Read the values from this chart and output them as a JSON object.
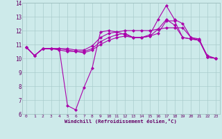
{
  "xlabel": "Windchill (Refroidissement éolien,°C)",
  "background_color": "#cdeaea",
  "grid_color": "#aacccc",
  "line_color": "#aa00aa",
  "x": [
    0,
    1,
    2,
    3,
    4,
    5,
    6,
    7,
    8,
    9,
    10,
    11,
    12,
    13,
    14,
    15,
    16,
    17,
    18,
    19,
    20,
    21,
    22,
    23
  ],
  "line1": [
    10.8,
    10.2,
    10.7,
    10.7,
    10.7,
    6.6,
    6.3,
    7.9,
    9.3,
    11.9,
    12.0,
    11.9,
    11.7,
    11.5,
    11.5,
    11.7,
    12.8,
    13.8,
    12.8,
    12.5,
    11.5,
    11.3,
    10.1,
    10.0
  ],
  "line2": [
    10.8,
    10.2,
    10.7,
    10.7,
    10.7,
    10.7,
    10.6,
    10.6,
    10.9,
    11.5,
    11.8,
    11.9,
    12.0,
    12.0,
    12.0,
    12.0,
    12.1,
    12.2,
    12.2,
    12.2,
    11.5,
    11.4,
    10.1,
    10.0
  ],
  "line3": [
    10.8,
    10.2,
    10.7,
    10.7,
    10.7,
    10.6,
    10.5,
    10.5,
    10.7,
    11.2,
    11.5,
    11.7,
    11.8,
    11.5,
    11.5,
    11.6,
    11.8,
    12.7,
    12.7,
    11.5,
    11.4,
    11.3,
    10.1,
    10.0
  ],
  "line4": [
    10.8,
    10.2,
    10.7,
    10.7,
    10.6,
    10.5,
    10.5,
    10.4,
    10.6,
    11.0,
    11.3,
    11.5,
    11.6,
    11.5,
    11.5,
    11.6,
    12.1,
    12.8,
    12.4,
    11.5,
    11.4,
    11.3,
    10.2,
    10.0
  ],
  "ylim": [
    6,
    14
  ],
  "xlim": [
    -0.5,
    23.5
  ],
  "yticks": [
    6,
    7,
    8,
    9,
    10,
    11,
    12,
    13,
    14
  ],
  "xticks": [
    0,
    1,
    2,
    3,
    4,
    5,
    6,
    7,
    8,
    9,
    10,
    11,
    12,
    13,
    14,
    15,
    16,
    17,
    18,
    19,
    20,
    21,
    22,
    23
  ],
  "ylabel_fontsize": 5.5,
  "xlabel_fontsize": 5.2,
  "tick_fontsize": 4.5,
  "linewidth": 0.8,
  "markersize": 2.2
}
